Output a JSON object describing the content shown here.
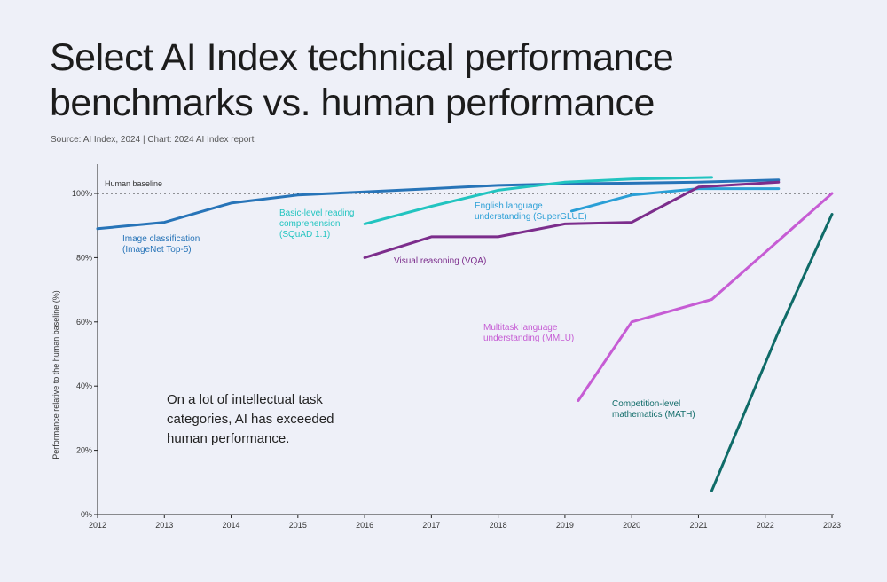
{
  "header": {
    "title": "Select AI Index technical performance benchmarks vs. human performance",
    "source": "Source: AI Index, 2024 | Chart: 2024 AI Index report"
  },
  "chart_data": {
    "type": "line",
    "title": "Select AI Index technical performance benchmarks vs. human performance",
    "ylabel": "Performance relative to the human baseline (%)",
    "xlabel": "",
    "xlim": [
      2012,
      2023
    ],
    "ylim": [
      0,
      100
    ],
    "x_ticks": [
      "2012",
      "2013",
      "2014",
      "2015",
      "2016",
      "2017",
      "2018",
      "2019",
      "2020",
      "2021",
      "2022",
      "2023"
    ],
    "y_ticks": [
      "0%",
      "20%",
      "40%",
      "60%",
      "80%",
      "100%"
    ],
    "baseline": {
      "label": "Human baseline",
      "value": 100
    },
    "note": [
      "On a lot of intellectual task",
      "categories, AI has exceeded",
      "human performance."
    ],
    "series": [
      {
        "name": "Image classification (ImageNet Top-5)",
        "label_lines": [
          "Image classification",
          "(ImageNet Top-5)"
        ],
        "color": "#2774b8",
        "x": [
          2012,
          2013,
          2014,
          2015,
          2016,
          2017,
          2018,
          2019,
          2020,
          2021,
          2022.2
        ],
        "y": [
          89,
          91,
          97,
          99.5,
          100.5,
          101.5,
          102.5,
          103,
          103.2,
          103.5,
          104.2
        ]
      },
      {
        "name": "Basic-level reading comprehension (SQuAD 1.1)",
        "label_lines": [
          "Basic-level reading",
          "comprehension",
          "(SQuAD 1.1)"
        ],
        "color": "#22c4c0",
        "x": [
          2016,
          2017,
          2018,
          2019,
          2020,
          2021.2
        ],
        "y": [
          90.5,
          96,
          101,
          103.5,
          104.5,
          105
        ]
      },
      {
        "name": "English language understanding (SuperGLUE)",
        "label_lines": [
          "English language",
          "understanding (SuperGLUE)"
        ],
        "color": "#2a9fd6",
        "x": [
          2019.1,
          2020,
          2021,
          2022.2
        ],
        "y": [
          94.5,
          99.5,
          101.5,
          101.5
        ]
      },
      {
        "name": "Visual reasoning (VQA)",
        "label_lines": [
          "Visual reasoning (VQA)"
        ],
        "color": "#7c2d8c",
        "x": [
          2016,
          2017,
          2018,
          2019,
          2020,
          2021,
          2022.2
        ],
        "y": [
          80,
          86.5,
          86.5,
          90.5,
          91,
          102,
          103.5
        ]
      },
      {
        "name": "Multitask language understanding (MMLU)",
        "label_lines": [
          "Multitask language",
          "understanding (MMLU)"
        ],
        "color": "#c65cd4",
        "x": [
          2019.2,
          2020,
          2021.2,
          2023
        ],
        "y": [
          35.5,
          60,
          67,
          100
        ]
      },
      {
        "name": "Competition-level mathematics (MATH)",
        "label_lines": [
          "Competition-level",
          "mathematics (MATH)"
        ],
        "color": "#0f6b68",
        "x": [
          2021.2,
          2022.2,
          2023
        ],
        "y": [
          7.5,
          57,
          93.5
        ]
      }
    ]
  }
}
